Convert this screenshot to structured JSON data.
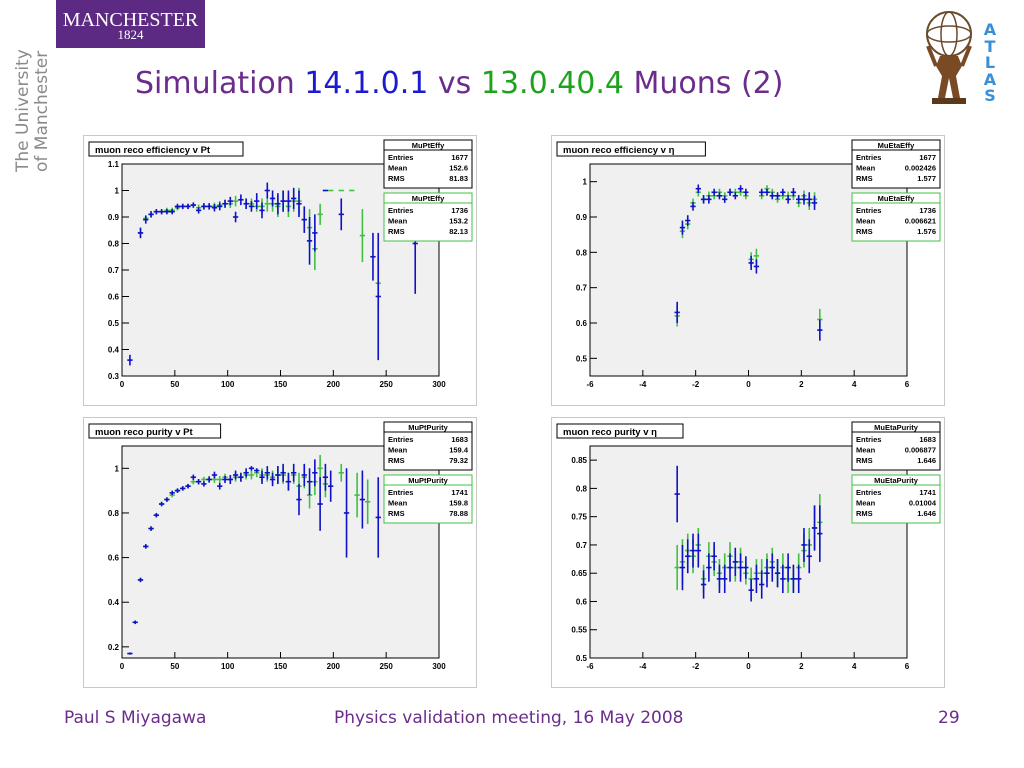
{
  "header": {
    "logo_word": "MANCHESTER",
    "logo_year": "1824",
    "university_line1": "The University",
    "university_line2": "of Manchester",
    "title_prefix": "Simulation ",
    "version_a": "14.1.0.1",
    "vs": " vs ",
    "version_b": "13.0.40.4",
    "title_suffix": " Muons (2)",
    "atlas_letters": [
      "A",
      "T",
      "L",
      "A",
      "S"
    ]
  },
  "colors": {
    "title_purple": "#6b2c8c",
    "version_a_blue": "#1a1ad0",
    "version_b_green": "#1fa31f",
    "series_blue": "#1010c8",
    "series_green": "#40c040",
    "plot_bg": "#f0f0f0",
    "logo_bg": "#5c2a82",
    "atlas_blue": "#3a8fd8"
  },
  "footer": {
    "author": "Paul S Miyagawa",
    "meeting": "Physics validation meeting, 16 May 2008",
    "page": "29"
  },
  "chart_data": [
    {
      "type": "scatter",
      "title": "muon reco efficiency v Pt",
      "xlim": [
        0,
        300
      ],
      "ylim": [
        0.3,
        1.1
      ],
      "xticks": [
        "0",
        "50",
        "100",
        "150",
        "200",
        "250",
        "300"
      ],
      "yticks": [
        "0.3",
        "0.4",
        "0.5",
        "0.6",
        "0.7",
        "0.8",
        "0.9",
        "1",
        "1.1"
      ],
      "grid": false,
      "stats": [
        {
          "name": "MuPtEffy",
          "entries": "1677",
          "mean": "152.6",
          "rms": "81.83",
          "color": "blue"
        },
        {
          "name": "MuPtEffy",
          "entries": "1736",
          "mean": "153.2",
          "rms": "82.13",
          "color": "green"
        }
      ],
      "series": [
        {
          "color": "blue",
          "x": [
            7.5,
            17.5,
            22.5,
            27.5,
            32.5,
            37.5,
            42.5,
            47.5,
            52.5,
            57.5,
            62.5,
            67.5,
            72.5,
            77.5,
            82.5,
            87.5,
            92.5,
            97.5,
            102.5,
            107.5,
            112.5,
            117.5,
            122.5,
            127.5,
            132.5,
            137.5,
            142.5,
            147.5,
            152.5,
            157.5,
            162.5,
            167.5,
            172.5,
            177.5,
            182.5,
            192.5,
            207.5,
            237.5,
            242.5,
            277.5
          ],
          "y": [
            0.36,
            0.84,
            0.89,
            0.91,
            0.92,
            0.92,
            0.92,
            0.92,
            0.94,
            0.94,
            0.94,
            0.945,
            0.925,
            0.94,
            0.94,
            0.935,
            0.94,
            0.95,
            0.96,
            0.9,
            0.965,
            0.95,
            0.94,
            0.96,
            0.925,
            1.0,
            0.97,
            0.95,
            0.96,
            0.96,
            0.97,
            0.95,
            0.89,
            0.81,
            0.84,
            1.0,
            0.91,
            0.75,
            0.6,
            0.8
          ],
          "err": [
            0.02,
            0.02,
            0.015,
            0.012,
            0.01,
            0.01,
            0.01,
            0.01,
            0.01,
            0.01,
            0.01,
            0.01,
            0.012,
            0.012,
            0.012,
            0.014,
            0.015,
            0.015,
            0.016,
            0.02,
            0.02,
            0.02,
            0.02,
            0.03,
            0.03,
            0.03,
            0.03,
            0.04,
            0.04,
            0.04,
            0.04,
            0.05,
            0.05,
            0.09,
            0.07,
            0.0,
            0.06,
            0.09,
            0.24,
            0.19
          ]
        },
        {
          "color": "green",
          "x": [
            17.5,
            22.5,
            27.5,
            32.5,
            37.5,
            42.5,
            47.5,
            52.5,
            57.5,
            62.5,
            67.5,
            72.5,
            77.5,
            82.5,
            87.5,
            92.5,
            97.5,
            102.5,
            107.5,
            117.5,
            122.5,
            127.5,
            132.5,
            137.5,
            142.5,
            147.5,
            152.5,
            157.5,
            162.5,
            167.5,
            172.5,
            177.5,
            182.5,
            187.5,
            197.5,
            207.5,
            217.5,
            227.5,
            242.5
          ],
          "y": [
            0.84,
            0.895,
            0.91,
            0.92,
            0.92,
            0.925,
            0.925,
            0.935,
            0.94,
            0.94,
            0.945,
            0.935,
            0.94,
            0.94,
            0.94,
            0.945,
            0.95,
            0.95,
            0.96,
            0.95,
            0.95,
            0.94,
            0.94,
            0.95,
            0.95,
            0.94,
            0.96,
            0.94,
            0.96,
            0.96,
            0.89,
            0.86,
            0.78,
            0.91,
            1.0,
            1.0,
            1.0,
            0.83,
            0.65
          ],
          "err": [
            0.015,
            0.012,
            0.012,
            0.01,
            0.01,
            0.01,
            0.01,
            0.01,
            0.01,
            0.01,
            0.01,
            0.012,
            0.012,
            0.012,
            0.014,
            0.015,
            0.015,
            0.016,
            0.02,
            0.02,
            0.02,
            0.02,
            0.03,
            0.03,
            0.03,
            0.04,
            0.04,
            0.04,
            0.04,
            0.05,
            0.05,
            0.07,
            0.08,
            0.04,
            0.0,
            0.0,
            0.0,
            0.1,
            0.1
          ]
        }
      ]
    },
    {
      "type": "scatter",
      "title": "muon reco efficiency v η",
      "xlim": [
        -6,
        6
      ],
      "ylim": [
        0.45,
        1.05
      ],
      "xticks": [
        "-6",
        "-4",
        "-2",
        "0",
        "2",
        "4",
        "6"
      ],
      "yticks": [
        "0.5",
        "0.6",
        "0.7",
        "0.8",
        "0.9",
        "1"
      ],
      "grid": false,
      "stats": [
        {
          "name": "MuEtaEffy",
          "entries": "1677",
          "mean": "0.002426",
          "rms": "1.577",
          "color": "blue"
        },
        {
          "name": "MuEtaEffy",
          "entries": "1736",
          "mean": "0.006621",
          "rms": "1.576",
          "color": "green"
        }
      ],
      "series": [
        {
          "color": "blue",
          "x": [
            -2.7,
            -2.5,
            -2.3,
            -2.1,
            -1.9,
            -1.7,
            -1.5,
            -1.3,
            -1.1,
            -0.9,
            -0.7,
            -0.5,
            -0.3,
            -0.1,
            0.1,
            0.3,
            0.5,
            0.7,
            0.9,
            1.1,
            1.3,
            1.5,
            1.7,
            1.9,
            2.1,
            2.3,
            2.5,
            2.7
          ],
          "y": [
            0.63,
            0.87,
            0.89,
            0.93,
            0.98,
            0.95,
            0.95,
            0.97,
            0.96,
            0.95,
            0.97,
            0.96,
            0.98,
            0.97,
            0.77,
            0.76,
            0.97,
            0.97,
            0.96,
            0.96,
            0.97,
            0.95,
            0.97,
            0.95,
            0.95,
            0.95,
            0.94,
            0.58
          ],
          "err": [
            0.03,
            0.02,
            0.015,
            0.012,
            0.012,
            0.012,
            0.012,
            0.01,
            0.01,
            0.01,
            0.01,
            0.01,
            0.01,
            0.01,
            0.02,
            0.02,
            0.01,
            0.01,
            0.01,
            0.01,
            0.01,
            0.012,
            0.012,
            0.012,
            0.015,
            0.02,
            0.02,
            0.03
          ]
        },
        {
          "color": "green",
          "x": [
            -2.7,
            -2.5,
            -2.3,
            -2.1,
            -1.9,
            -1.7,
            -1.5,
            -1.3,
            -1.1,
            -0.9,
            -0.7,
            -0.5,
            -0.3,
            -0.1,
            0.1,
            0.3,
            0.5,
            0.7,
            0.9,
            1.1,
            1.3,
            1.5,
            1.7,
            1.9,
            2.1,
            2.3,
            2.5,
            2.7
          ],
          "y": [
            0.62,
            0.86,
            0.88,
            0.94,
            0.97,
            0.95,
            0.96,
            0.96,
            0.97,
            0.96,
            0.97,
            0.97,
            0.97,
            0.96,
            0.78,
            0.79,
            0.96,
            0.98,
            0.97,
            0.95,
            0.96,
            0.96,
            0.96,
            0.94,
            0.96,
            0.94,
            0.95,
            0.61
          ],
          "err": [
            0.03,
            0.02,
            0.015,
            0.012,
            0.012,
            0.012,
            0.012,
            0.01,
            0.01,
            0.01,
            0.01,
            0.01,
            0.01,
            0.01,
            0.02,
            0.02,
            0.01,
            0.01,
            0.01,
            0.01,
            0.01,
            0.012,
            0.012,
            0.012,
            0.015,
            0.02,
            0.02,
            0.03
          ]
        }
      ]
    },
    {
      "type": "scatter",
      "title": "muon reco purity v Pt",
      "xlim": [
        0,
        300
      ],
      "ylim": [
        0.15,
        1.1
      ],
      "xticks": [
        "0",
        "50",
        "100",
        "150",
        "200",
        "250",
        "300"
      ],
      "yticks": [
        "0.2",
        "0.4",
        "0.6",
        "0.8",
        "1"
      ],
      "grid": false,
      "stats": [
        {
          "name": "MuPtPurity",
          "entries": "1683",
          "mean": "159.4",
          "rms": "79.32",
          "color": "blue"
        },
        {
          "name": "MuPtPurity",
          "entries": "1741",
          "mean": "159.8",
          "rms": "78.88",
          "color": "green"
        }
      ],
      "series": [
        {
          "color": "blue",
          "x": [
            7.5,
            12.5,
            17.5,
            22.5,
            27.5,
            32.5,
            37.5,
            42.5,
            47.5,
            52.5,
            57.5,
            62.5,
            67.5,
            72.5,
            77.5,
            82.5,
            87.5,
            92.5,
            97.5,
            102.5,
            107.5,
            112.5,
            117.5,
            122.5,
            127.5,
            132.5,
            137.5,
            142.5,
            147.5,
            152.5,
            157.5,
            162.5,
            167.5,
            172.5,
            177.5,
            182.5,
            187.5,
            192.5,
            197.5,
            212.5,
            227.5,
            242.5
          ],
          "y": [
            0.17,
            0.31,
            0.5,
            0.65,
            0.73,
            0.79,
            0.84,
            0.86,
            0.89,
            0.9,
            0.91,
            0.92,
            0.96,
            0.94,
            0.93,
            0.95,
            0.97,
            0.92,
            0.95,
            0.95,
            0.97,
            0.96,
            0.98,
            1.0,
            0.99,
            0.96,
            0.98,
            0.95,
            0.97,
            0.98,
            0.94,
            0.98,
            0.86,
            0.97,
            0.94,
            0.98,
            0.84,
            0.96,
            0.92,
            0.8,
            0.86,
            0.78
          ],
          "err": [
            0.005,
            0.008,
            0.01,
            0.01,
            0.01,
            0.01,
            0.01,
            0.01,
            0.01,
            0.01,
            0.01,
            0.01,
            0.012,
            0.012,
            0.012,
            0.014,
            0.015,
            0.015,
            0.016,
            0.02,
            0.02,
            0.02,
            0.02,
            0.01,
            0.01,
            0.03,
            0.03,
            0.03,
            0.04,
            0.04,
            0.04,
            0.04,
            0.07,
            0.05,
            0.06,
            0.06,
            0.12,
            0.06,
            0.07,
            0.2,
            0.13,
            0.18
          ]
        },
        {
          "color": "green",
          "x": [
            17.5,
            22.5,
            27.5,
            32.5,
            37.5,
            42.5,
            47.5,
            52.5,
            57.5,
            62.5,
            67.5,
            72.5,
            77.5,
            82.5,
            87.5,
            92.5,
            97.5,
            102.5,
            107.5,
            112.5,
            117.5,
            122.5,
            127.5,
            132.5,
            137.5,
            142.5,
            147.5,
            152.5,
            157.5,
            162.5,
            167.5,
            172.5,
            177.5,
            182.5,
            187.5,
            192.5,
            207.5,
            222.5,
            232.5
          ],
          "y": [
            0.5,
            0.65,
            0.73,
            0.79,
            0.84,
            0.86,
            0.88,
            0.9,
            0.91,
            0.92,
            0.94,
            0.94,
            0.95,
            0.95,
            0.95,
            0.95,
            0.96,
            0.95,
            0.96,
            0.96,
            0.97,
            0.97,
            0.98,
            0.97,
            0.97,
            0.96,
            0.97,
            0.97,
            0.94,
            0.97,
            0.92,
            0.96,
            0.88,
            0.94,
            1.0,
            0.93,
            0.98,
            0.88,
            0.85
          ],
          "err": [
            0.01,
            0.01,
            0.01,
            0.01,
            0.01,
            0.01,
            0.01,
            0.01,
            0.01,
            0.01,
            0.012,
            0.012,
            0.012,
            0.014,
            0.015,
            0.015,
            0.016,
            0.02,
            0.02,
            0.02,
            0.02,
            0.02,
            0.02,
            0.03,
            0.03,
            0.03,
            0.04,
            0.04,
            0.04,
            0.04,
            0.06,
            0.05,
            0.06,
            0.06,
            0.06,
            0.06,
            0.04,
            0.1,
            0.1
          ]
        }
      ]
    },
    {
      "type": "scatter",
      "title": "muon reco purity v η",
      "xlim": [
        -6,
        6
      ],
      "ylim": [
        0.5,
        0.875
      ],
      "xticks": [
        "-6",
        "-4",
        "-2",
        "0",
        "2",
        "4",
        "6"
      ],
      "yticks": [
        "0.5",
        "0.55",
        "0.6",
        "0.65",
        "0.7",
        "0.75",
        "0.8",
        "0.85"
      ],
      "grid": false,
      "stats": [
        {
          "name": "MuEtaPurity",
          "entries": "1683",
          "mean": "0.006877",
          "rms": "1.646",
          "color": "blue"
        },
        {
          "name": "MuEtaPurity",
          "entries": "1741",
          "mean": "0.01004",
          "rms": "1.646",
          "color": "green"
        }
      ],
      "series": [
        {
          "color": "blue",
          "x": [
            -2.7,
            -2.5,
            -2.3,
            -2.1,
            -1.9,
            -1.7,
            -1.5,
            -1.3,
            -1.1,
            -0.9,
            -0.7,
            -0.5,
            -0.3,
            -0.1,
            0.1,
            0.3,
            0.5,
            0.7,
            0.9,
            1.1,
            1.3,
            1.5,
            1.7,
            1.9,
            2.1,
            2.3,
            2.5,
            2.7
          ],
          "y": [
            0.79,
            0.66,
            0.68,
            0.69,
            0.69,
            0.63,
            0.66,
            0.68,
            0.64,
            0.64,
            0.66,
            0.67,
            0.66,
            0.66,
            0.62,
            0.64,
            0.63,
            0.65,
            0.66,
            0.65,
            0.64,
            0.66,
            0.64,
            0.64,
            0.7,
            0.68,
            0.73,
            0.72
          ],
          "err": [
            0.05,
            0.04,
            0.03,
            0.03,
            0.03,
            0.025,
            0.025,
            0.025,
            0.025,
            0.025,
            0.025,
            0.025,
            0.025,
            0.02,
            0.02,
            0.025,
            0.025,
            0.025,
            0.025,
            0.025,
            0.025,
            0.025,
            0.025,
            0.025,
            0.03,
            0.03,
            0.04,
            0.05
          ]
        },
        {
          "color": "green",
          "x": [
            -2.7,
            -2.5,
            -2.3,
            -2.1,
            -1.9,
            -1.7,
            -1.5,
            -1.3,
            -1.1,
            -0.9,
            -0.7,
            -0.5,
            -0.3,
            -0.1,
            0.1,
            0.3,
            0.5,
            0.7,
            0.9,
            1.1,
            1.3,
            1.5,
            1.7,
            1.9,
            2.1,
            2.3,
            2.5,
            2.7
          ],
          "y": [
            0.66,
            0.67,
            0.69,
            0.68,
            0.7,
            0.64,
            0.68,
            0.67,
            0.65,
            0.66,
            0.68,
            0.66,
            0.67,
            0.65,
            0.64,
            0.65,
            0.65,
            0.66,
            0.67,
            0.65,
            0.66,
            0.64,
            0.64,
            0.66,
            0.69,
            0.7,
            0.73,
            0.74
          ],
          "err": [
            0.04,
            0.04,
            0.03,
            0.03,
            0.03,
            0.025,
            0.025,
            0.025,
            0.025,
            0.025,
            0.025,
            0.025,
            0.025,
            0.02,
            0.02,
            0.025,
            0.025,
            0.025,
            0.025,
            0.025,
            0.025,
            0.025,
            0.025,
            0.025,
            0.03,
            0.03,
            0.04,
            0.05
          ]
        }
      ]
    }
  ]
}
